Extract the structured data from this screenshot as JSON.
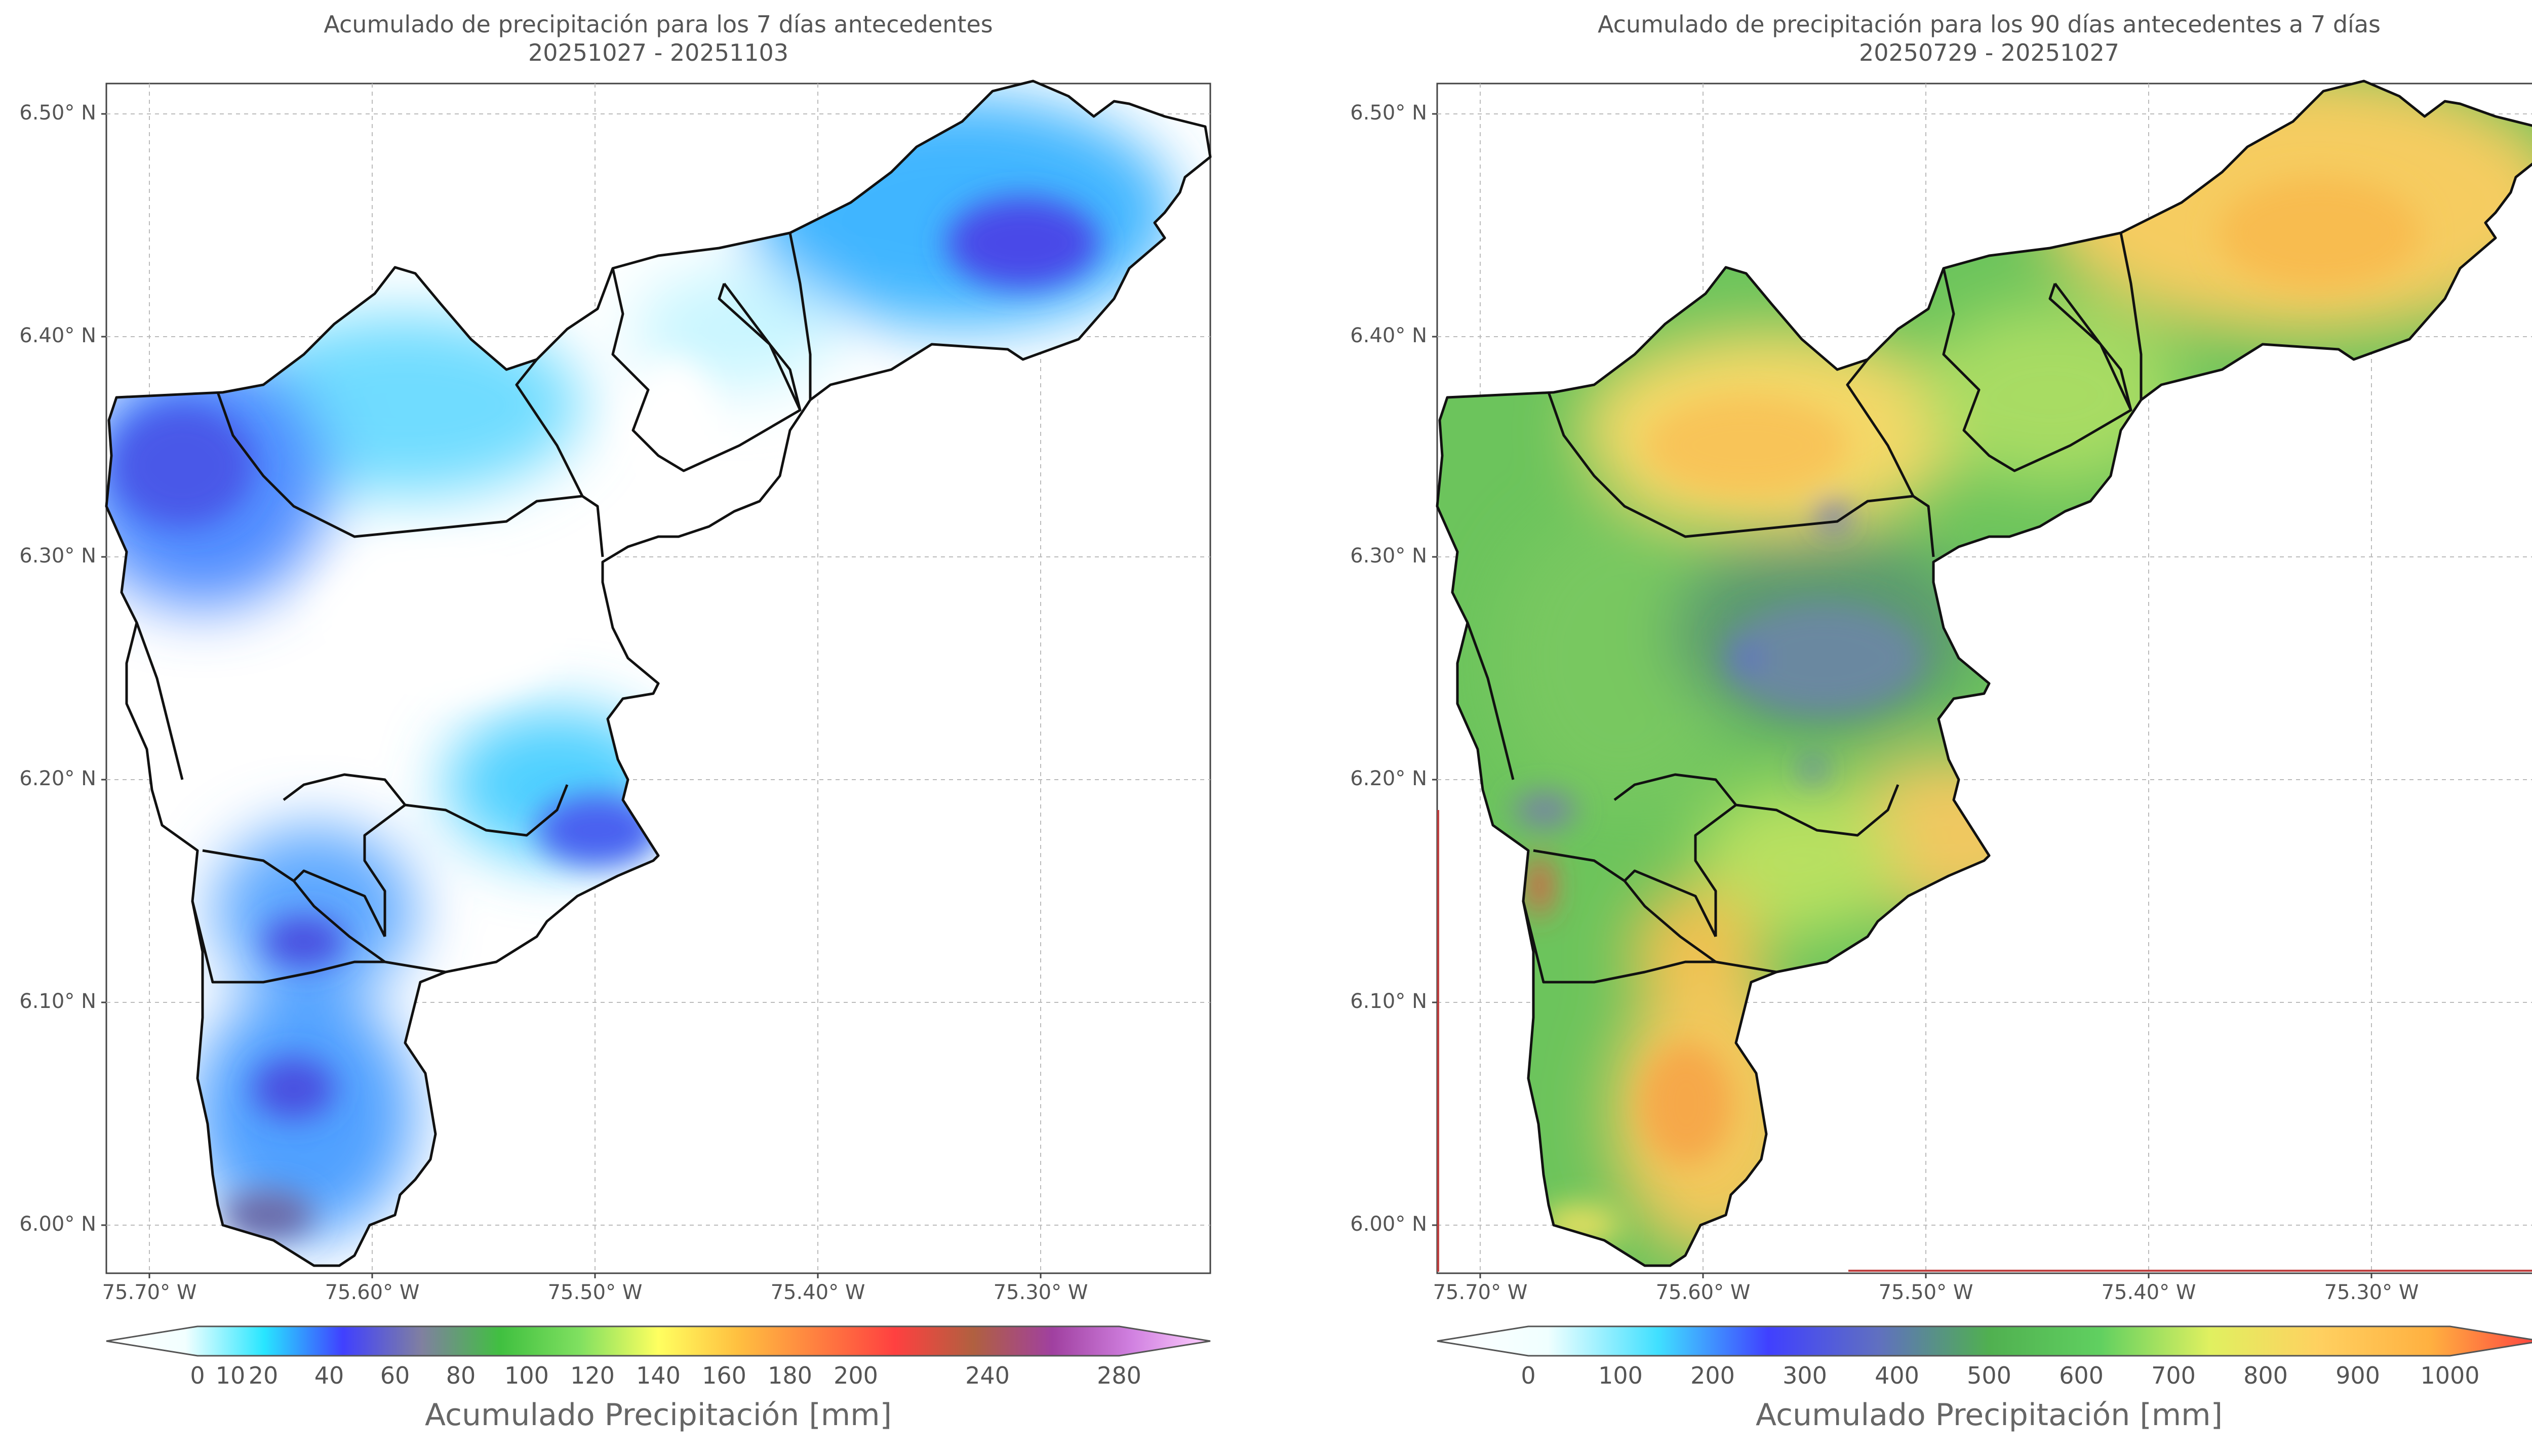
{
  "left_panel": {
    "title_line1": "Acumulado de precipitación para los 7 días antecedentes",
    "title_line2": "20251027 - 20251103",
    "colorbar_label": "Acumulado Precipitación [mm]",
    "colorbar_ticks": [
      "0",
      "10",
      "20",
      "40",
      "60",
      "80",
      "100",
      "120",
      "140",
      "160",
      "180",
      "200",
      "240",
      "280"
    ],
    "colorbar_values": [
      0,
      10,
      20,
      40,
      60,
      80,
      100,
      120,
      140,
      160,
      180,
      200,
      240,
      280
    ],
    "colorbar_colors": [
      "#ffffff",
      "#f2ffff",
      "#28e6ff",
      "#4040ff",
      "#8080a0",
      "#40c040",
      "#80e060",
      "#ffff60",
      "#ffc040",
      "#ff8040",
      "#ff4040",
      "#b06040",
      "#a040a0",
      "#d080e0",
      "#ffd0ff"
    ]
  },
  "right_panel": {
    "title_line1": "Acumulado de precipitación para los 90 días antecedentes a 7 días",
    "title_line2": "20250729 - 20251027",
    "colorbar_label": "Acumulado Precipitación [mm]",
    "colorbar_ticks": [
      "0",
      "100",
      "200",
      "300",
      "400",
      "500",
      "600",
      "700",
      "800",
      "900",
      "1000"
    ],
    "colorbar_values": [
      0,
      100,
      200,
      300,
      400,
      500,
      600,
      700,
      800,
      900,
      1000
    ],
    "colorbar_colors": [
      "#ffffff",
      "#f0ffff",
      "#40e0ff",
      "#4040ff",
      "#6070c0",
      "#50b050",
      "#60d060",
      "#e0f060",
      "#ffd060",
      "#ffb040",
      "#ff4040"
    ]
  },
  "axes": {
    "lat_ticks": [
      "6.50° N",
      "6.40° N",
      "6.30° N",
      "6.20° N",
      "6.10° N",
      "6.00° N"
    ],
    "lat_values": [
      6.5,
      6.4,
      6.3,
      6.2,
      6.1,
      6.0
    ],
    "lon_ticks": [
      "75.70° W",
      "75.60° W",
      "75.50° W",
      "75.40° W",
      "75.30° W"
    ],
    "lon_values": [
      -75.7,
      -75.6,
      -75.5,
      -75.4,
      -75.3
    ],
    "lat_range": [
      5.978,
      6.513
    ],
    "lon_range": [
      -75.718,
      -75.222
    ]
  },
  "colors": {
    "axis_frame": "#444444",
    "gridline": "#bbbbbb",
    "border": "#111111"
  }
}
